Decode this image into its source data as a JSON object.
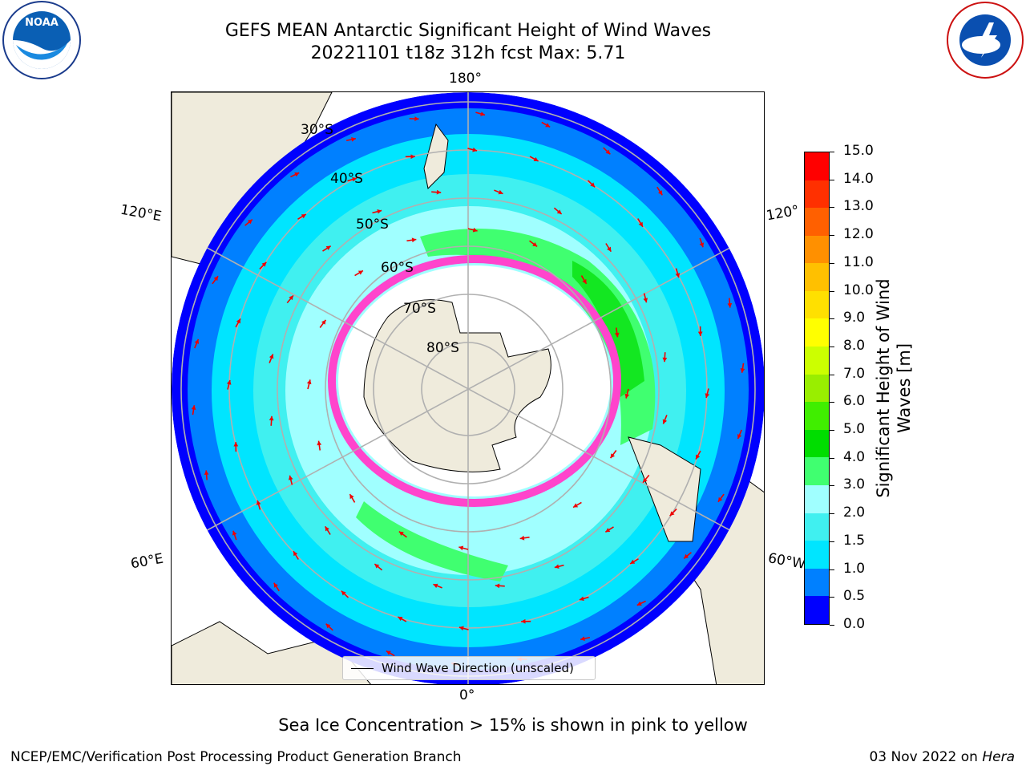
{
  "title": {
    "line1": "GEFS MEAN Antarctic Significant Height of Wind Waves",
    "line2": "20221101 t18z 312h fcst   Max: 5.71"
  },
  "map": {
    "longitude_labels": {
      "top": "180°",
      "bottom": "0°",
      "upper_left": "120°E",
      "upper_right": "120°",
      "lower_left": "60°E",
      "lower_right": "60°W"
    },
    "latitude_labels": [
      "30°S",
      "40°S",
      "50°S",
      "60°S",
      "70°S",
      "80°S"
    ],
    "legend": "Wind Wave Direction (unscaled)"
  },
  "colorbar": {
    "label_line1": "Significant Height of Wind",
    "label_line2": "Waves [m]",
    "ticks": [
      "0.0",
      "0.5",
      "1.0",
      "1.5",
      "2.0",
      "3.0",
      "4.0",
      "5.0",
      "6.0",
      "7.0",
      "8.0",
      "9.0",
      "10.0",
      "11.0",
      "12.0",
      "13.0",
      "14.0",
      "15.0"
    ],
    "colors": [
      "#0000ff",
      "#0080ff",
      "#00e5ff",
      "#40f0f0",
      "#a0ffff",
      "#40ff70",
      "#00dd00",
      "#40ee00",
      "#99ee00",
      "#ccff00",
      "#ffff00",
      "#ffe000",
      "#ffc000",
      "#ff9000",
      "#ff6000",
      "#ff3000",
      "#ff0000"
    ]
  },
  "logos": {
    "left": "NOAA",
    "right": "NATIONAL WEATHER SERVICE"
  },
  "caption": "Sea Ice Concentration > 15% is shown in pink to yellow",
  "footer": {
    "left": "NCEP/EMC/Verification Post Processing Product Generation Branch",
    "right_date": "03 Nov 2022 on ",
    "right_host": "Hera"
  }
}
